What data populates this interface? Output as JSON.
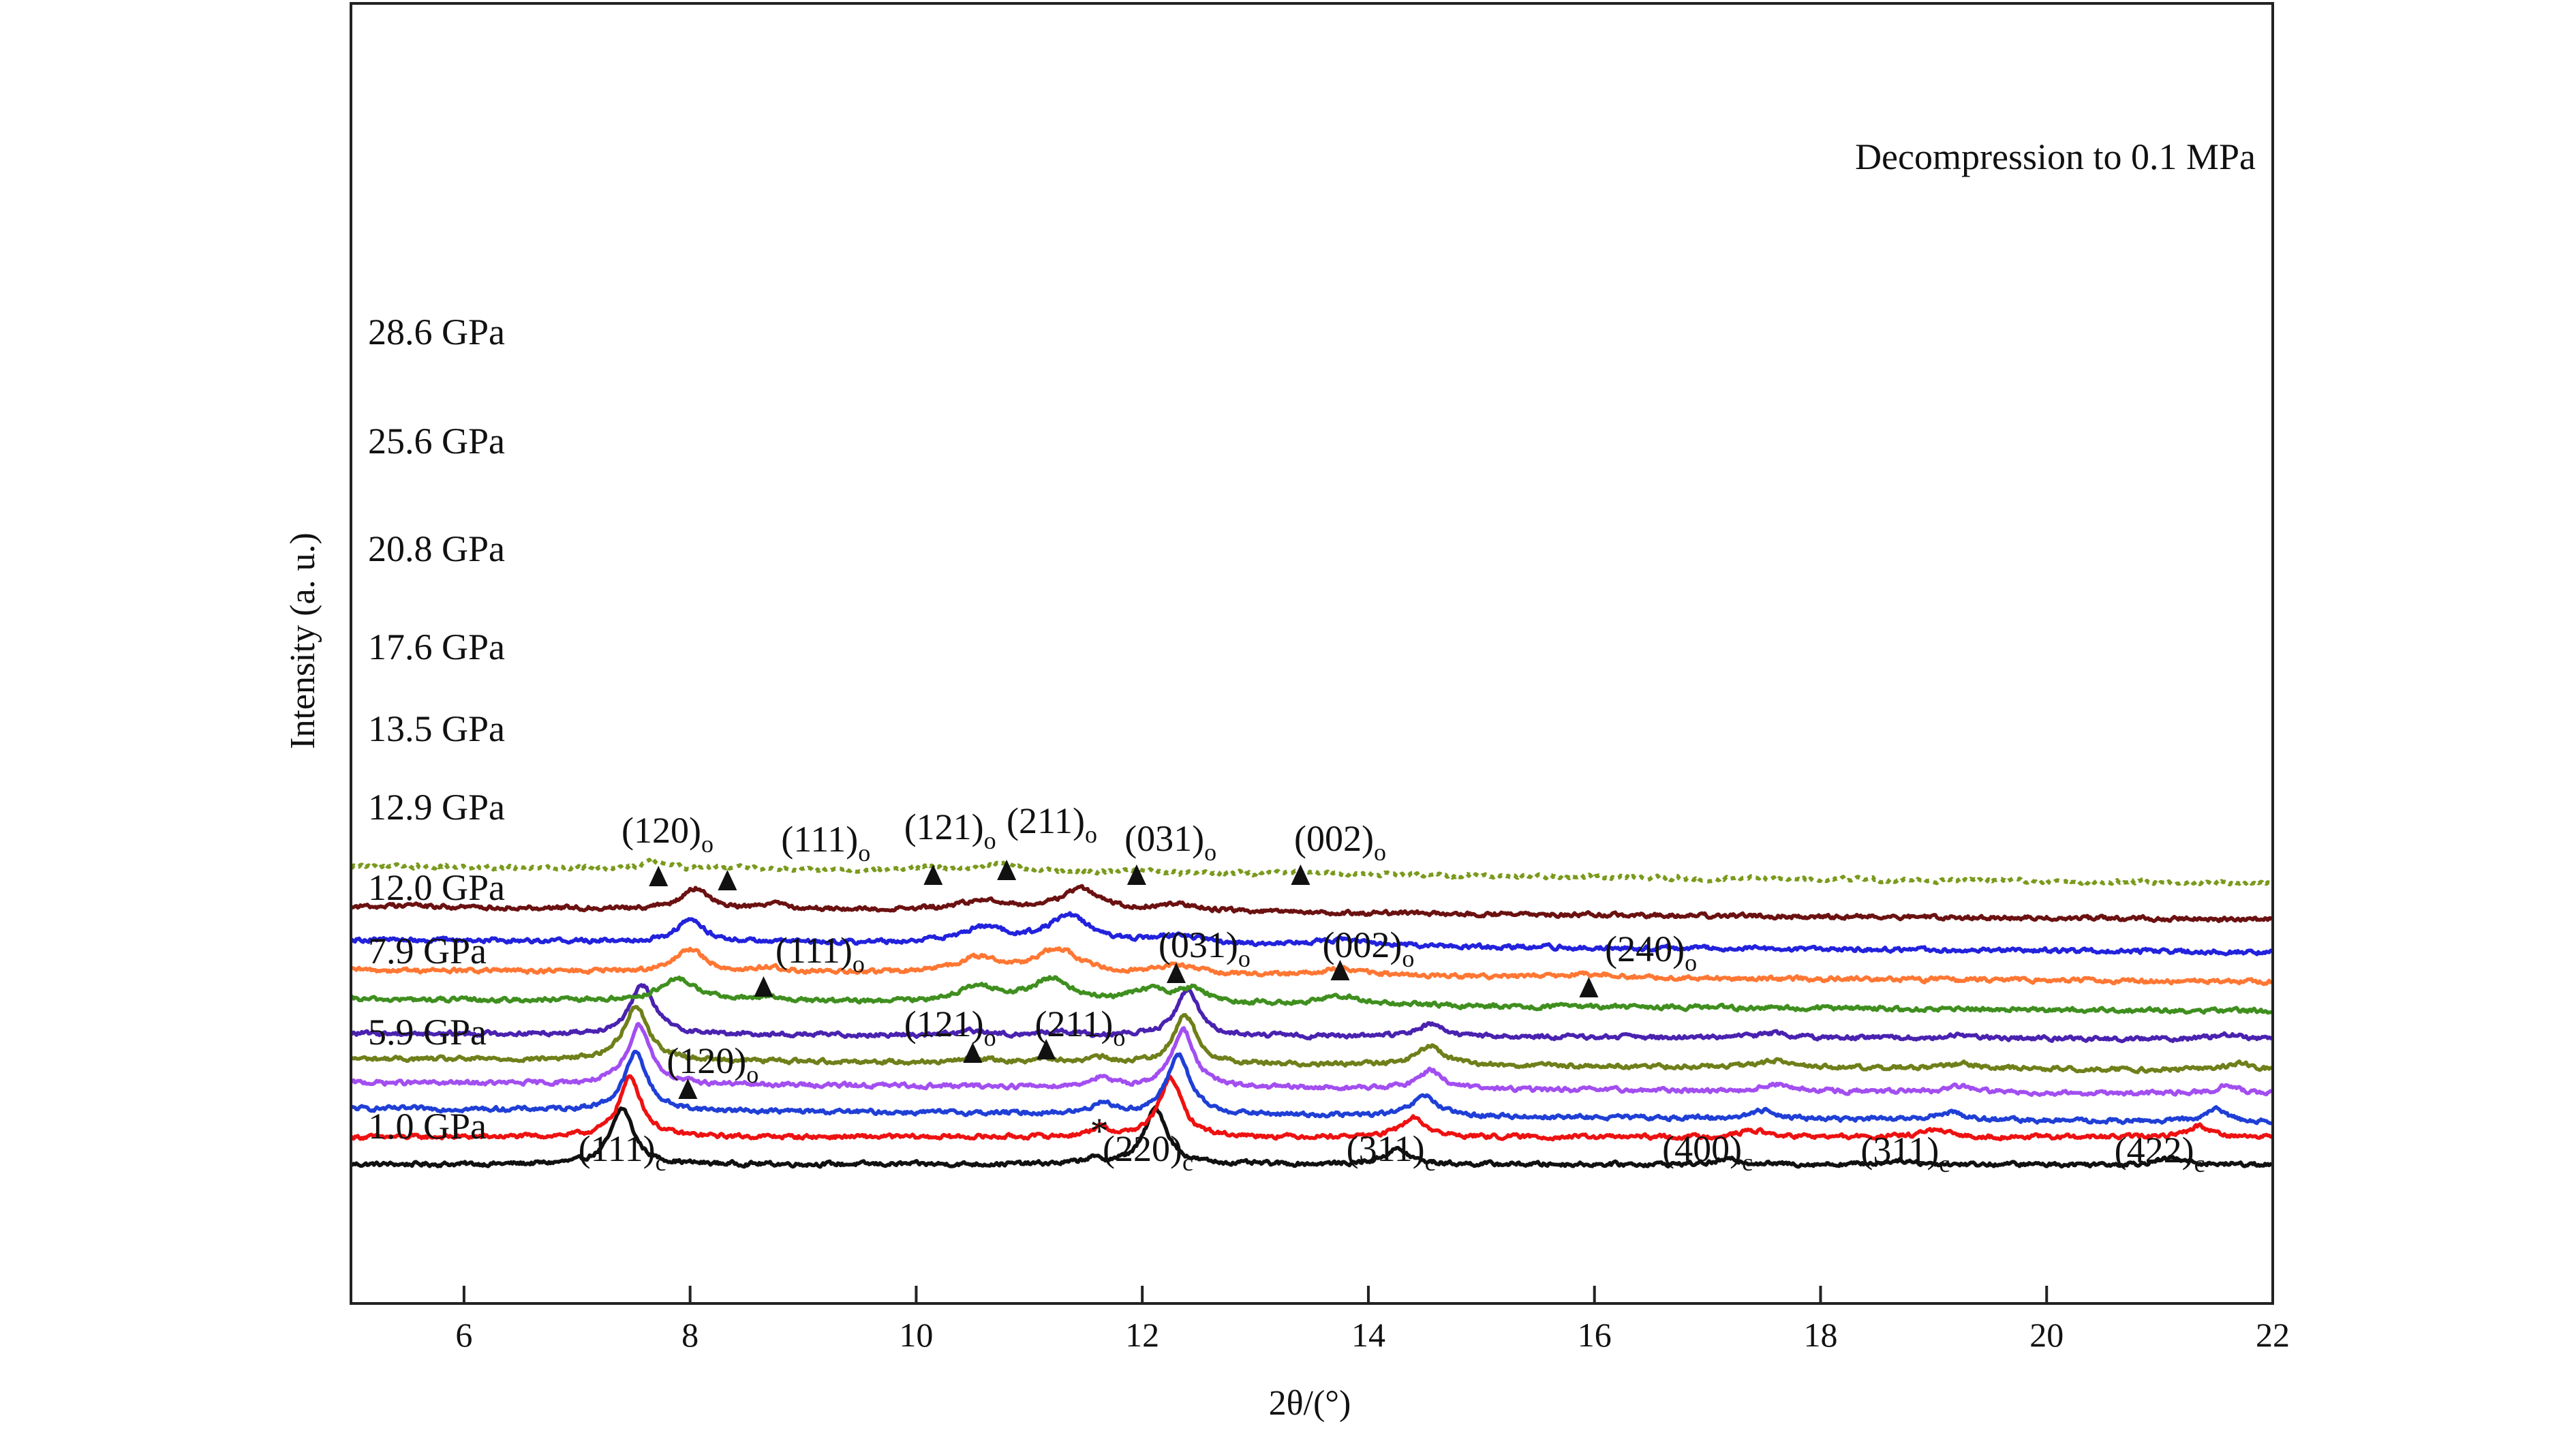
{
  "chart_data": {
    "type": "line",
    "title": "",
    "xlabel": "2θ/(°)",
    "ylabel": "Intensity (a. u.)",
    "xlim": [
      5,
      22
    ],
    "xticks": [
      6,
      8,
      10,
      12,
      14,
      16,
      18,
      20,
      22
    ],
    "yticks": [],
    "annotation": "Decompression to 0.1 MPa",
    "series": [
      {
        "name": "1.0 GPa",
        "label": "1.0 GPa",
        "color": "#111111",
        "style": "solid",
        "baseline": 0.0,
        "slope": 0.0,
        "peaks": [
          [
            7.4,
            0.82,
            0.12
          ],
          [
            11.55,
            0.07,
            0.1
          ],
          [
            12.12,
            0.82,
            0.12
          ],
          [
            14.25,
            0.22,
            0.13
          ],
          [
            17.2,
            0.07,
            0.14
          ],
          [
            18.7,
            0.06,
            0.14
          ],
          [
            21.1,
            0.09,
            0.14
          ]
        ]
      },
      {
        "name": "5.9 GPa",
        "label": "5.9 GPa",
        "color": "#ee1111",
        "style": "solid",
        "baseline": 0.4,
        "slope": 0.0,
        "peaks": [
          [
            7.47,
            0.88,
            0.12
          ],
          [
            11.62,
            0.13,
            0.1
          ],
          [
            12.25,
            0.87,
            0.12
          ],
          [
            14.4,
            0.28,
            0.13
          ],
          [
            17.4,
            0.1,
            0.14
          ],
          [
            19.0,
            0.1,
            0.14
          ],
          [
            21.35,
            0.16,
            0.13
          ]
        ]
      },
      {
        "name": "7.9 GPa",
        "label": "7.9 GPa",
        "color": "#1f3fd6",
        "style": "solid",
        "baseline": 0.82,
        "slope": -0.012,
        "peaks": [
          [
            7.52,
            0.85,
            0.12
          ],
          [
            11.65,
            0.17,
            0.1
          ],
          [
            12.32,
            0.88,
            0.12
          ],
          [
            14.5,
            0.3,
            0.13
          ],
          [
            17.5,
            0.12,
            0.14
          ],
          [
            19.15,
            0.12,
            0.14
          ],
          [
            21.5,
            0.18,
            0.13
          ]
        ]
      },
      {
        "name": "12.0 GPa",
        "label": "12.0 GPa",
        "color": "#a24ef0",
        "style": "solid",
        "baseline": 1.2,
        "slope": -0.01,
        "peaks": [
          [
            7.55,
            0.88,
            0.12
          ],
          [
            11.62,
            0.13,
            0.11
          ],
          [
            12.36,
            0.85,
            0.12
          ],
          [
            14.55,
            0.28,
            0.13
          ],
          [
            17.6,
            0.1,
            0.14
          ],
          [
            19.25,
            0.09,
            0.14
          ],
          [
            21.6,
            0.12,
            0.13
          ]
        ]
      },
      {
        "name": "12.9 GPa",
        "label": "12.9 GPa",
        "color": "#6f7f1a",
        "style": "solid",
        "baseline": 1.55,
        "slope": -0.01,
        "peaks": [
          [
            7.52,
            0.8,
            0.13
          ],
          [
            10.55,
            0.06,
            0.14
          ],
          [
            11.15,
            0.07,
            0.14
          ],
          [
            11.62,
            0.07,
            0.1
          ],
          [
            12.38,
            0.72,
            0.12
          ],
          [
            14.55,
            0.28,
            0.14
          ],
          [
            17.6,
            0.1,
            0.15
          ],
          [
            19.25,
            0.08,
            0.15
          ],
          [
            21.7,
            0.1,
            0.14
          ]
        ]
      },
      {
        "name": "13.5 GPa",
        "label": "13.5 GPa",
        "color": "#4a22b0",
        "style": "solid",
        "baseline": 1.92,
        "slope": -0.005,
        "peaks": [
          [
            7.58,
            0.72,
            0.13
          ],
          [
            10.5,
            0.06,
            0.15
          ],
          [
            11.25,
            0.06,
            0.15
          ],
          [
            12.4,
            0.68,
            0.12
          ],
          [
            14.55,
            0.18,
            0.14
          ],
          [
            17.6,
            0.07,
            0.15
          ],
          [
            19.25,
            0.05,
            0.15
          ],
          [
            21.6,
            0.07,
            0.14
          ]
        ]
      },
      {
        "name": "17.6 GPa",
        "label": "17.6 GPa",
        "color": "#3f8f1f",
        "style": "solid",
        "baseline": 2.42,
        "slope": -0.01,
        "peaks": [
          [
            7.9,
            0.32,
            0.2
          ],
          [
            8.7,
            0.07,
            0.12
          ],
          [
            10.55,
            0.22,
            0.25
          ],
          [
            11.2,
            0.34,
            0.2
          ],
          [
            12.05,
            0.18,
            0.22
          ],
          [
            12.45,
            0.2,
            0.16
          ],
          [
            13.75,
            0.12,
            0.25
          ]
        ]
      },
      {
        "name": "20.8 GPa",
        "label": "20.8 GPa",
        "color": "#ff7733",
        "style": "solid",
        "baseline": 2.85,
        "slope": -0.01,
        "peaks": [
          [
            8.0,
            0.34,
            0.15
          ],
          [
            8.7,
            0.07,
            0.12
          ],
          [
            10.55,
            0.22,
            0.25
          ],
          [
            11.25,
            0.36,
            0.22
          ],
          [
            12.3,
            0.12,
            0.25
          ],
          [
            13.75,
            0.1,
            0.25
          ],
          [
            16.0,
            0.05,
            0.3
          ]
        ]
      },
      {
        "name": "25.6 GPa",
        "label": "25.6 GPa",
        "color": "#2222dd",
        "style": "solid",
        "baseline": 3.3,
        "slope": -0.011,
        "peaks": [
          [
            8.0,
            0.32,
            0.14
          ],
          [
            10.6,
            0.22,
            0.25
          ],
          [
            11.35,
            0.4,
            0.22
          ],
          [
            12.3,
            0.12,
            0.28
          ],
          [
            13.75,
            0.08,
            0.3
          ]
        ]
      },
      {
        "name": "28.6 GPa",
        "label": "28.6 GPa",
        "color": "#6b1111",
        "style": "solid",
        "baseline": 3.78,
        "slope": -0.011,
        "peaks": [
          [
            5.5,
            0.04,
            0.12
          ],
          [
            8.05,
            0.3,
            0.14
          ],
          [
            8.75,
            0.1,
            0.12
          ],
          [
            10.6,
            0.14,
            0.28
          ],
          [
            11.45,
            0.32,
            0.2
          ],
          [
            12.3,
            0.1,
            0.28
          ]
        ]
      },
      {
        "name": "Decompression to 0.1 MPa",
        "label": "",
        "color": "#7a9a1c",
        "style": "dotted",
        "baseline": 4.38,
        "slope": -0.015,
        "peaks": [
          [
            7.7,
            0.1,
            0.12
          ],
          [
            8.3,
            0.04,
            0.12
          ],
          [
            10.1,
            0.07,
            0.15
          ],
          [
            10.75,
            0.12,
            0.18
          ],
          [
            11.95,
            0.05,
            0.2
          ],
          [
            13.4,
            0.05,
            0.22
          ]
        ]
      }
    ],
    "peak_labels": [
      {
        "text": "(111)",
        "sub": "c",
        "x": 7.4,
        "y": 0.05
      },
      {
        "text": "(220)",
        "sub": "c",
        "x": 12.05,
        "y": 0.05
      },
      {
        "text": "(311)",
        "sub": "c",
        "x": 14.2,
        "y": 0.05
      },
      {
        "text": "(400)",
        "sub": "c",
        "x": 17.0,
        "y": 0.05
      },
      {
        "text": "(311)",
        "sub": "c",
        "x": 18.75,
        "y": 0.03
      },
      {
        "text": "(422)",
        "sub": "c",
        "x": 21.0,
        "y": 0.03
      },
      {
        "text": "*",
        "sub": "",
        "x": 11.62,
        "y": 0.31
      },
      {
        "text": "(120)",
        "sub": "o",
        "x": 8.2,
        "y": 1.34
      },
      {
        "text": "(121)",
        "sub": "o",
        "x": 10.3,
        "y": 1.88
      },
      {
        "text": "(211)",
        "sub": "o",
        "x": 11.45,
        "y": 1.88
      },
      {
        "text": "(111)",
        "sub": "o",
        "x": 9.15,
        "y": 2.96
      },
      {
        "text": "(031)",
        "sub": "o",
        "x": 12.55,
        "y": 3.04
      },
      {
        "text": "(002)",
        "sub": "o",
        "x": 14.0,
        "y": 3.04
      },
      {
        "text": "(240)",
        "sub": "o",
        "x": 16.5,
        "y": 2.98
      },
      {
        "text": "(120)",
        "sub": "o",
        "x": 7.8,
        "y": 4.72
      },
      {
        "text": "(111)",
        "sub": "o",
        "x": 9.2,
        "y": 4.59
      },
      {
        "text": "(121)",
        "sub": "o",
        "x": 10.3,
        "y": 4.77
      },
      {
        "text": "(211)",
        "sub": "o",
        "x": 11.2,
        "y": 4.86
      },
      {
        "text": "(031)",
        "sub": "o",
        "x": 12.25,
        "y": 4.6
      },
      {
        "text": "(002)",
        "sub": "o",
        "x": 13.75,
        "y": 4.6
      }
    ],
    "arrows": [
      {
        "x": 7.98,
        "y0": 1.06,
        "y1": 1.26
      },
      {
        "x": 10.5,
        "y0": 1.58,
        "y1": 1.79
      },
      {
        "x": 11.15,
        "y0": 1.63,
        "y1": 1.84
      },
      {
        "x": 8.65,
        "y0": 2.56,
        "y1": 2.76
      },
      {
        "x": 12.3,
        "y0": 2.74,
        "y1": 2.96
      },
      {
        "x": 13.75,
        "y0": 2.8,
        "y1": 3.0
      },
      {
        "x": 15.95,
        "y0": 2.55,
        "y1": 2.75
      },
      {
        "x": 7.72,
        "y0": 4.18,
        "y1": 4.38
      },
      {
        "x": 8.33,
        "y0": 4.12,
        "y1": 4.32
      },
      {
        "x": 10.15,
        "y0": 4.2,
        "y1": 4.4
      },
      {
        "x": 10.8,
        "y0": 4.27,
        "y1": 4.47
      },
      {
        "x": 11.95,
        "y0": 4.2,
        "y1": 4.4
      },
      {
        "x": 13.4,
        "y0": 4.2,
        "y1": 4.4
      }
    ]
  }
}
